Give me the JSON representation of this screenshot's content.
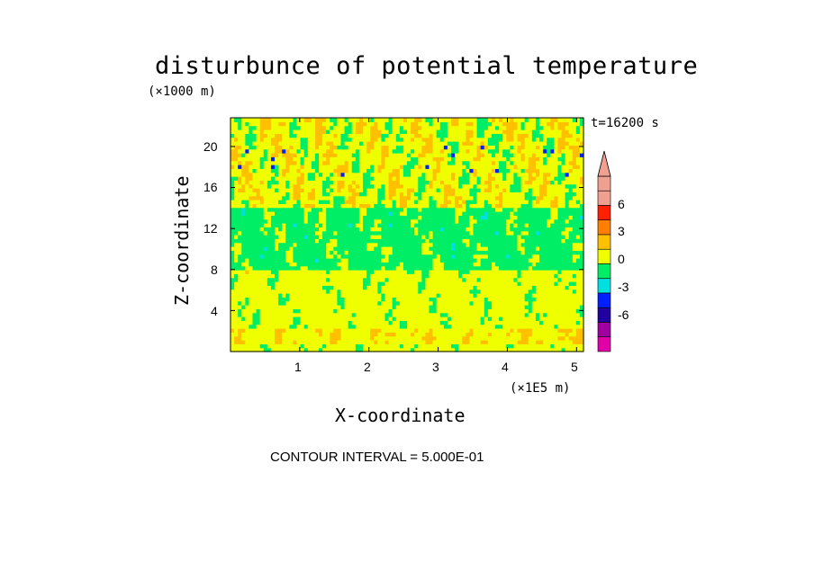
{
  "chart_data": {
    "type": "heatmap",
    "title": "disturbunce of potential temperature",
    "xlabel": "X-coordinate",
    "ylabel": "Z-coordinate",
    "x_scale_label": "(×1E5 m)",
    "y_scale_label": "(×1000 m)",
    "time_label": "t=16200 s",
    "footer": "CONTOUR INTERVAL = 5.000E-01",
    "xlim": [
      0,
      5.1
    ],
    "ylim": [
      0,
      22.8
    ],
    "x_ticks": [
      "1",
      "2",
      "3",
      "4",
      "5"
    ],
    "x_tick_values": [
      1,
      2,
      3,
      4,
      5
    ],
    "y_ticks": [
      "4",
      "8",
      "12",
      "16",
      "20"
    ],
    "y_tick_values": [
      4,
      8,
      12,
      16,
      20
    ],
    "colorbar": {
      "tick_labels": [
        "6",
        "3",
        "0",
        "-3",
        "-6"
      ],
      "tick_values": [
        6,
        3,
        0,
        -3,
        -6
      ],
      "levels": [
        -7.5,
        -6,
        -4.5,
        -3,
        -1.5,
        0,
        1.5,
        3,
        4.5,
        6,
        7.5
      ],
      "colors": [
        "#e000a8",
        "#a000a0",
        "#2000a0",
        "#0020ff",
        "#00e0e0",
        "#00ee66",
        "#f0ff00",
        "#ffc000",
        "#ff8000",
        "#ff2000",
        "#f0a090",
        "#f0a090"
      ],
      "extend": "both"
    },
    "field_bands": [
      {
        "z_range": [
          0,
          0.8
        ],
        "dominant_value": 0.5
      },
      {
        "z_range": [
          0.8,
          2.2
        ],
        "dominant_value": 1.2
      },
      {
        "z_range": [
          2.2,
          8
        ],
        "dominant_value": 0.5
      },
      {
        "z_range": [
          8,
          14
        ],
        "dominant_value": -0.5
      },
      {
        "z_range": [
          14,
          22.8
        ],
        "dominant_value": 0.8
      }
    ]
  }
}
